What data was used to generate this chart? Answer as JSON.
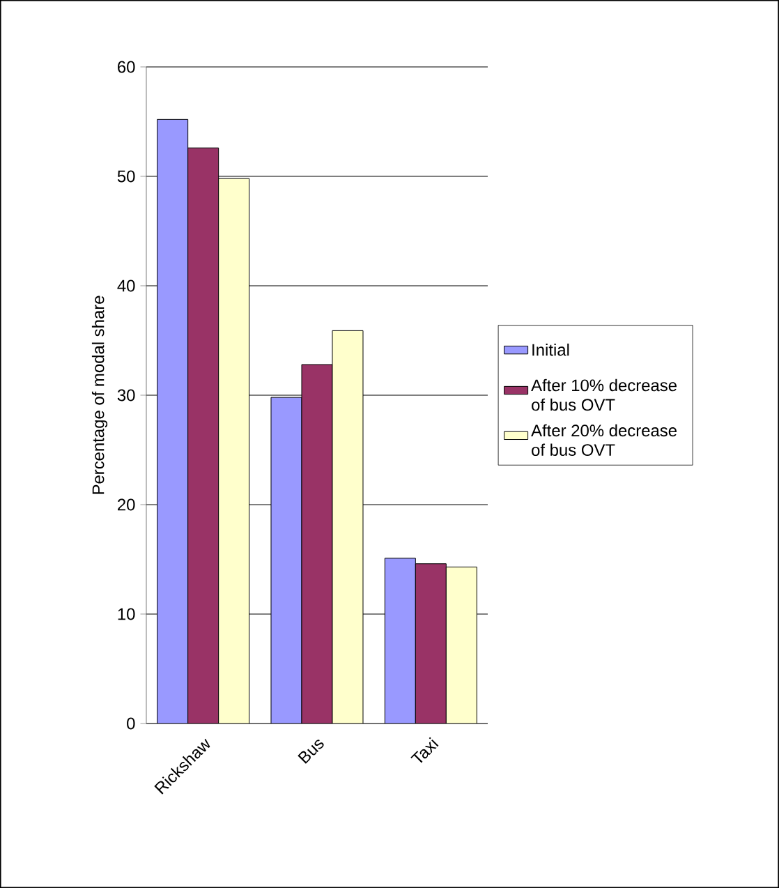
{
  "chart_data": {
    "type": "bar",
    "ylabel": "Percentage of modal share",
    "categories": [
      "Rickshaw",
      "Bus",
      "Taxi"
    ],
    "series": [
      {
        "name": "Initial",
        "color": "#9999ff",
        "values": [
          55.2,
          29.8,
          15.1
        ]
      },
      {
        "name": "After 10% decrease of bus OVT",
        "color": "#993366",
        "values": [
          52.6,
          32.8,
          14.6
        ]
      },
      {
        "name": "After 20% decrease of bus OVT",
        "color": "#ffffcc",
        "values": [
          49.8,
          35.9,
          14.3
        ]
      }
    ],
    "ylim": [
      0,
      60
    ],
    "yticks": [
      0,
      10,
      20,
      30,
      40,
      50,
      60
    ],
    "grid": "y",
    "legend": "right"
  }
}
